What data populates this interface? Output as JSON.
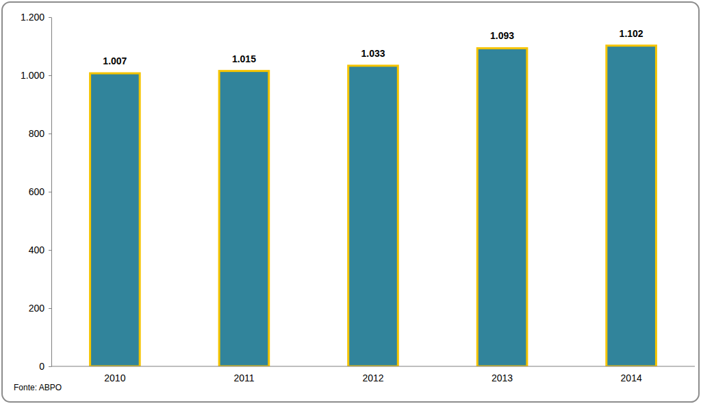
{
  "chart_data": {
    "type": "bar",
    "categories": [
      "2010",
      "2011",
      "2012",
      "2013",
      "2014"
    ],
    "values": [
      1007,
      1015,
      1033,
      1093,
      1102
    ],
    "value_labels": [
      "1.007",
      "1.015",
      "1.033",
      "1.093",
      "1.102"
    ],
    "color": "#31849b",
    "ylim": [
      0,
      1200
    ],
    "yticks": [
      0,
      200,
      400,
      600,
      800,
      {
        "value": 1000,
        "label": "1.000"
      },
      {
        "value": 1200,
        "label": "1.200"
      }
    ],
    "grid": false,
    "data_labels": true,
    "annotations": [
      "Fonte: ABPO"
    ]
  }
}
